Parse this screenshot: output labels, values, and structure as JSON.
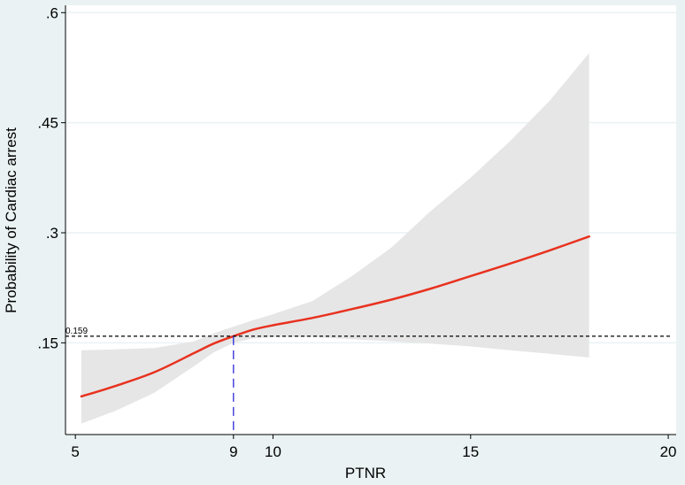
{
  "chart_data": {
    "type": "line",
    "title": "",
    "xlabel": "PTNR",
    "ylabel": "Probability of Cardiac arrest",
    "xlim": [
      4.75,
      20.2
    ],
    "ylim": [
      0.025,
      0.61
    ],
    "x_ticks": [
      5,
      9,
      10,
      15,
      20
    ],
    "x_tick_labels": [
      "5",
      "9",
      "10",
      "15",
      "20"
    ],
    "y_ticks": [
      0.15,
      0.3,
      0.45,
      0.6
    ],
    "y_tick_labels": [
      ".15",
      ".3",
      ".45",
      ".6"
    ],
    "grid": true,
    "colors": {
      "background": "#eaf2f3",
      "plot_background": "#ffffff",
      "curve": "#e8321f",
      "ci_band": "#e6e6e6",
      "gridline": "#eaf2f3",
      "threshold_line": "#000000",
      "cutoff_line": "#2a2ad8"
    },
    "series": [
      {
        "x": [
          5.15,
          6,
          7,
          8,
          8.5,
          9,
          9.5,
          10,
          11,
          12,
          13,
          14,
          15,
          16,
          17,
          18
        ],
        "y": [
          0.077,
          0.091,
          0.11,
          0.136,
          0.149,
          0.159,
          0.168,
          0.174,
          0.184,
          0.196,
          0.209,
          0.224,
          0.241,
          0.258,
          0.276,
          0.295
        ]
      }
    ],
    "ci_band": {
      "x": [
        5.15,
        6,
        7,
        8,
        8.5,
        9,
        9.5,
        10,
        11,
        12,
        13,
        14,
        15,
        16,
        17,
        18
      ],
      "lower": [
        0.04,
        0.057,
        0.082,
        0.118,
        0.137,
        0.15,
        0.156,
        0.158,
        0.158,
        0.155,
        0.152,
        0.149,
        0.145,
        0.14,
        0.135,
        0.13
      ],
      "upper": [
        0.14,
        0.141,
        0.143,
        0.152,
        0.163,
        0.172,
        0.181,
        0.189,
        0.207,
        0.241,
        0.28,
        0.33,
        0.375,
        0.425,
        0.48,
        0.545
      ]
    },
    "annotations": {
      "threshold_y": 0.159,
      "threshold_label": "0.159",
      "cutoff_x": 9
    }
  }
}
